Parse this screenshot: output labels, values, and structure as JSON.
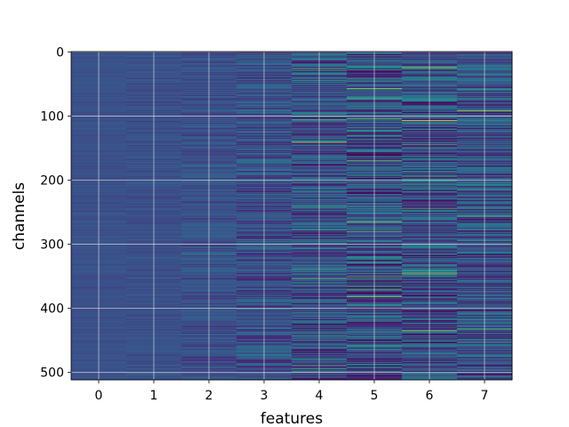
{
  "chart_data": {
    "type": "heatmap",
    "title": "",
    "xlabel": "features",
    "ylabel": "channels",
    "x_ticks": [
      0,
      1,
      2,
      3,
      4,
      5,
      6,
      7
    ],
    "y_ticks": [
      0,
      100,
      200,
      300,
      400,
      500
    ],
    "xlim": [
      -0.5,
      7.5
    ],
    "ylim": [
      511.5,
      -0.5
    ],
    "grid": true,
    "colormap": "viridis",
    "n_channels": 512,
    "n_features": 8,
    "feature_spread": [
      0.03,
      0.05,
      0.08,
      0.14,
      0.2,
      0.24,
      0.24,
      0.2
    ],
    "highlights": [
      {
        "feature": 4,
        "channel": 106,
        "value": 0.75
      },
      {
        "feature": 4,
        "channel": 141,
        "value": 0.9
      },
      {
        "feature": 5,
        "channel": 57,
        "value": 0.85
      },
      {
        "feature": 5,
        "channel": 265,
        "value": 0.85
      },
      {
        "feature": 5,
        "channel": 280,
        "value": 0.75
      },
      {
        "feature": 6,
        "channel": 107,
        "value": 1.0
      },
      {
        "feature": 6,
        "channel": 345,
        "value": 0.9
      },
      {
        "feature": 6,
        "channel": 435,
        "value": 0.85
      },
      {
        "feature": 7,
        "channel": 92,
        "value": 0.9
      },
      {
        "feature": 7,
        "channel": 256,
        "value": 0.7
      }
    ]
  },
  "colors": {
    "background": "#3e4a89",
    "grid": "#dcdcdc",
    "axis": "#000000"
  }
}
